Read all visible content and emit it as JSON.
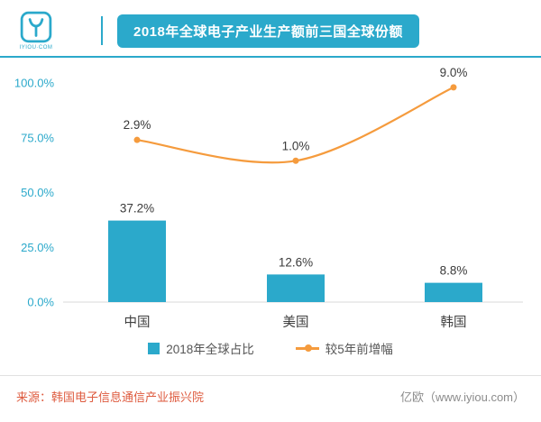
{
  "colors": {
    "teal": "#2BA9CB",
    "orange": "#F59B3D",
    "source_text": "#DE5B3F",
    "label_dark": "#404040",
    "brand_gray": "#8C8C8C"
  },
  "header": {
    "logo_caption": "IYIOU·COM",
    "title": "2018年全球电子产业生产额前三国全球份额"
  },
  "chart_data": {
    "type": "bar",
    "subtype": "combo-bar-line",
    "categories": [
      "中国",
      "美国",
      "韩国"
    ],
    "series": [
      {
        "name": "2018年全球占比",
        "type": "bar",
        "unit": "%",
        "values": [
          37.2,
          12.6,
          8.8
        ],
        "labels": [
          "37.2%",
          "12.6%",
          "8.8%"
        ]
      },
      {
        "name": "较5年前增幅",
        "type": "line",
        "unit": "%",
        "values": [
          2.9,
          1.0,
          9.0
        ],
        "labels": [
          "2.9%",
          "1.0%",
          "9.0%"
        ]
      }
    ],
    "y_axis": {
      "ticks": [
        "0.0%",
        "25.0%",
        "50.0%",
        "75.0%",
        "100.0%"
      ],
      "min": 0,
      "max": 100
    },
    "line_plot_height_pct": [
      74,
      64.5,
      98
    ],
    "grid": false,
    "legend_position": "bottom",
    "title": "2018年全球电子产业生产额前三国全球份额"
  },
  "footer": {
    "source": "来源：韩国电子信息通信产业振兴院",
    "brand": "亿欧（www.iyiou.com）"
  }
}
